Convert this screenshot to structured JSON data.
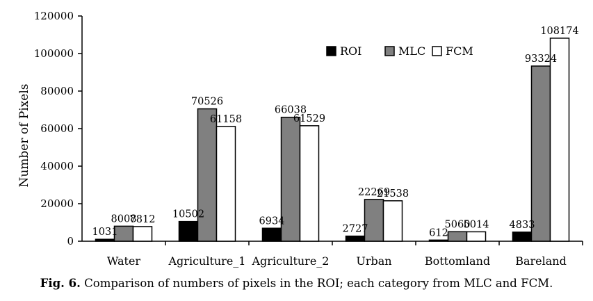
{
  "caption": {
    "label": "Fig. 6.",
    "text": "Comparison of numbers of pixels in the ROI; each category from MLC and FCM."
  },
  "chart_data": {
    "type": "bar",
    "ylabel": "Number of Pixels",
    "xlabel": "",
    "ylim": [
      0,
      120000
    ],
    "yticks": [
      "0",
      "20000",
      "40000",
      "60000",
      "80000",
      "100000",
      "120000"
    ],
    "legend_position": "top-center",
    "categories": [
      "Water",
      "Agriculture_1",
      "Agriculture_2",
      "Urban",
      "Bottomland",
      "Bareland"
    ],
    "series": [
      {
        "name": "ROI",
        "color": "#000000",
        "values": [
          1031,
          10502,
          6934,
          2727,
          612,
          4833
        ]
      },
      {
        "name": "MLC",
        "color": "#808080",
        "values": [
          8008,
          70526,
          66038,
          22269,
          5060,
          93324
        ]
      },
      {
        "name": "FCM",
        "color": "#ffffff",
        "values": [
          7812,
          61158,
          61529,
          21538,
          5014,
          108174
        ]
      }
    ]
  }
}
